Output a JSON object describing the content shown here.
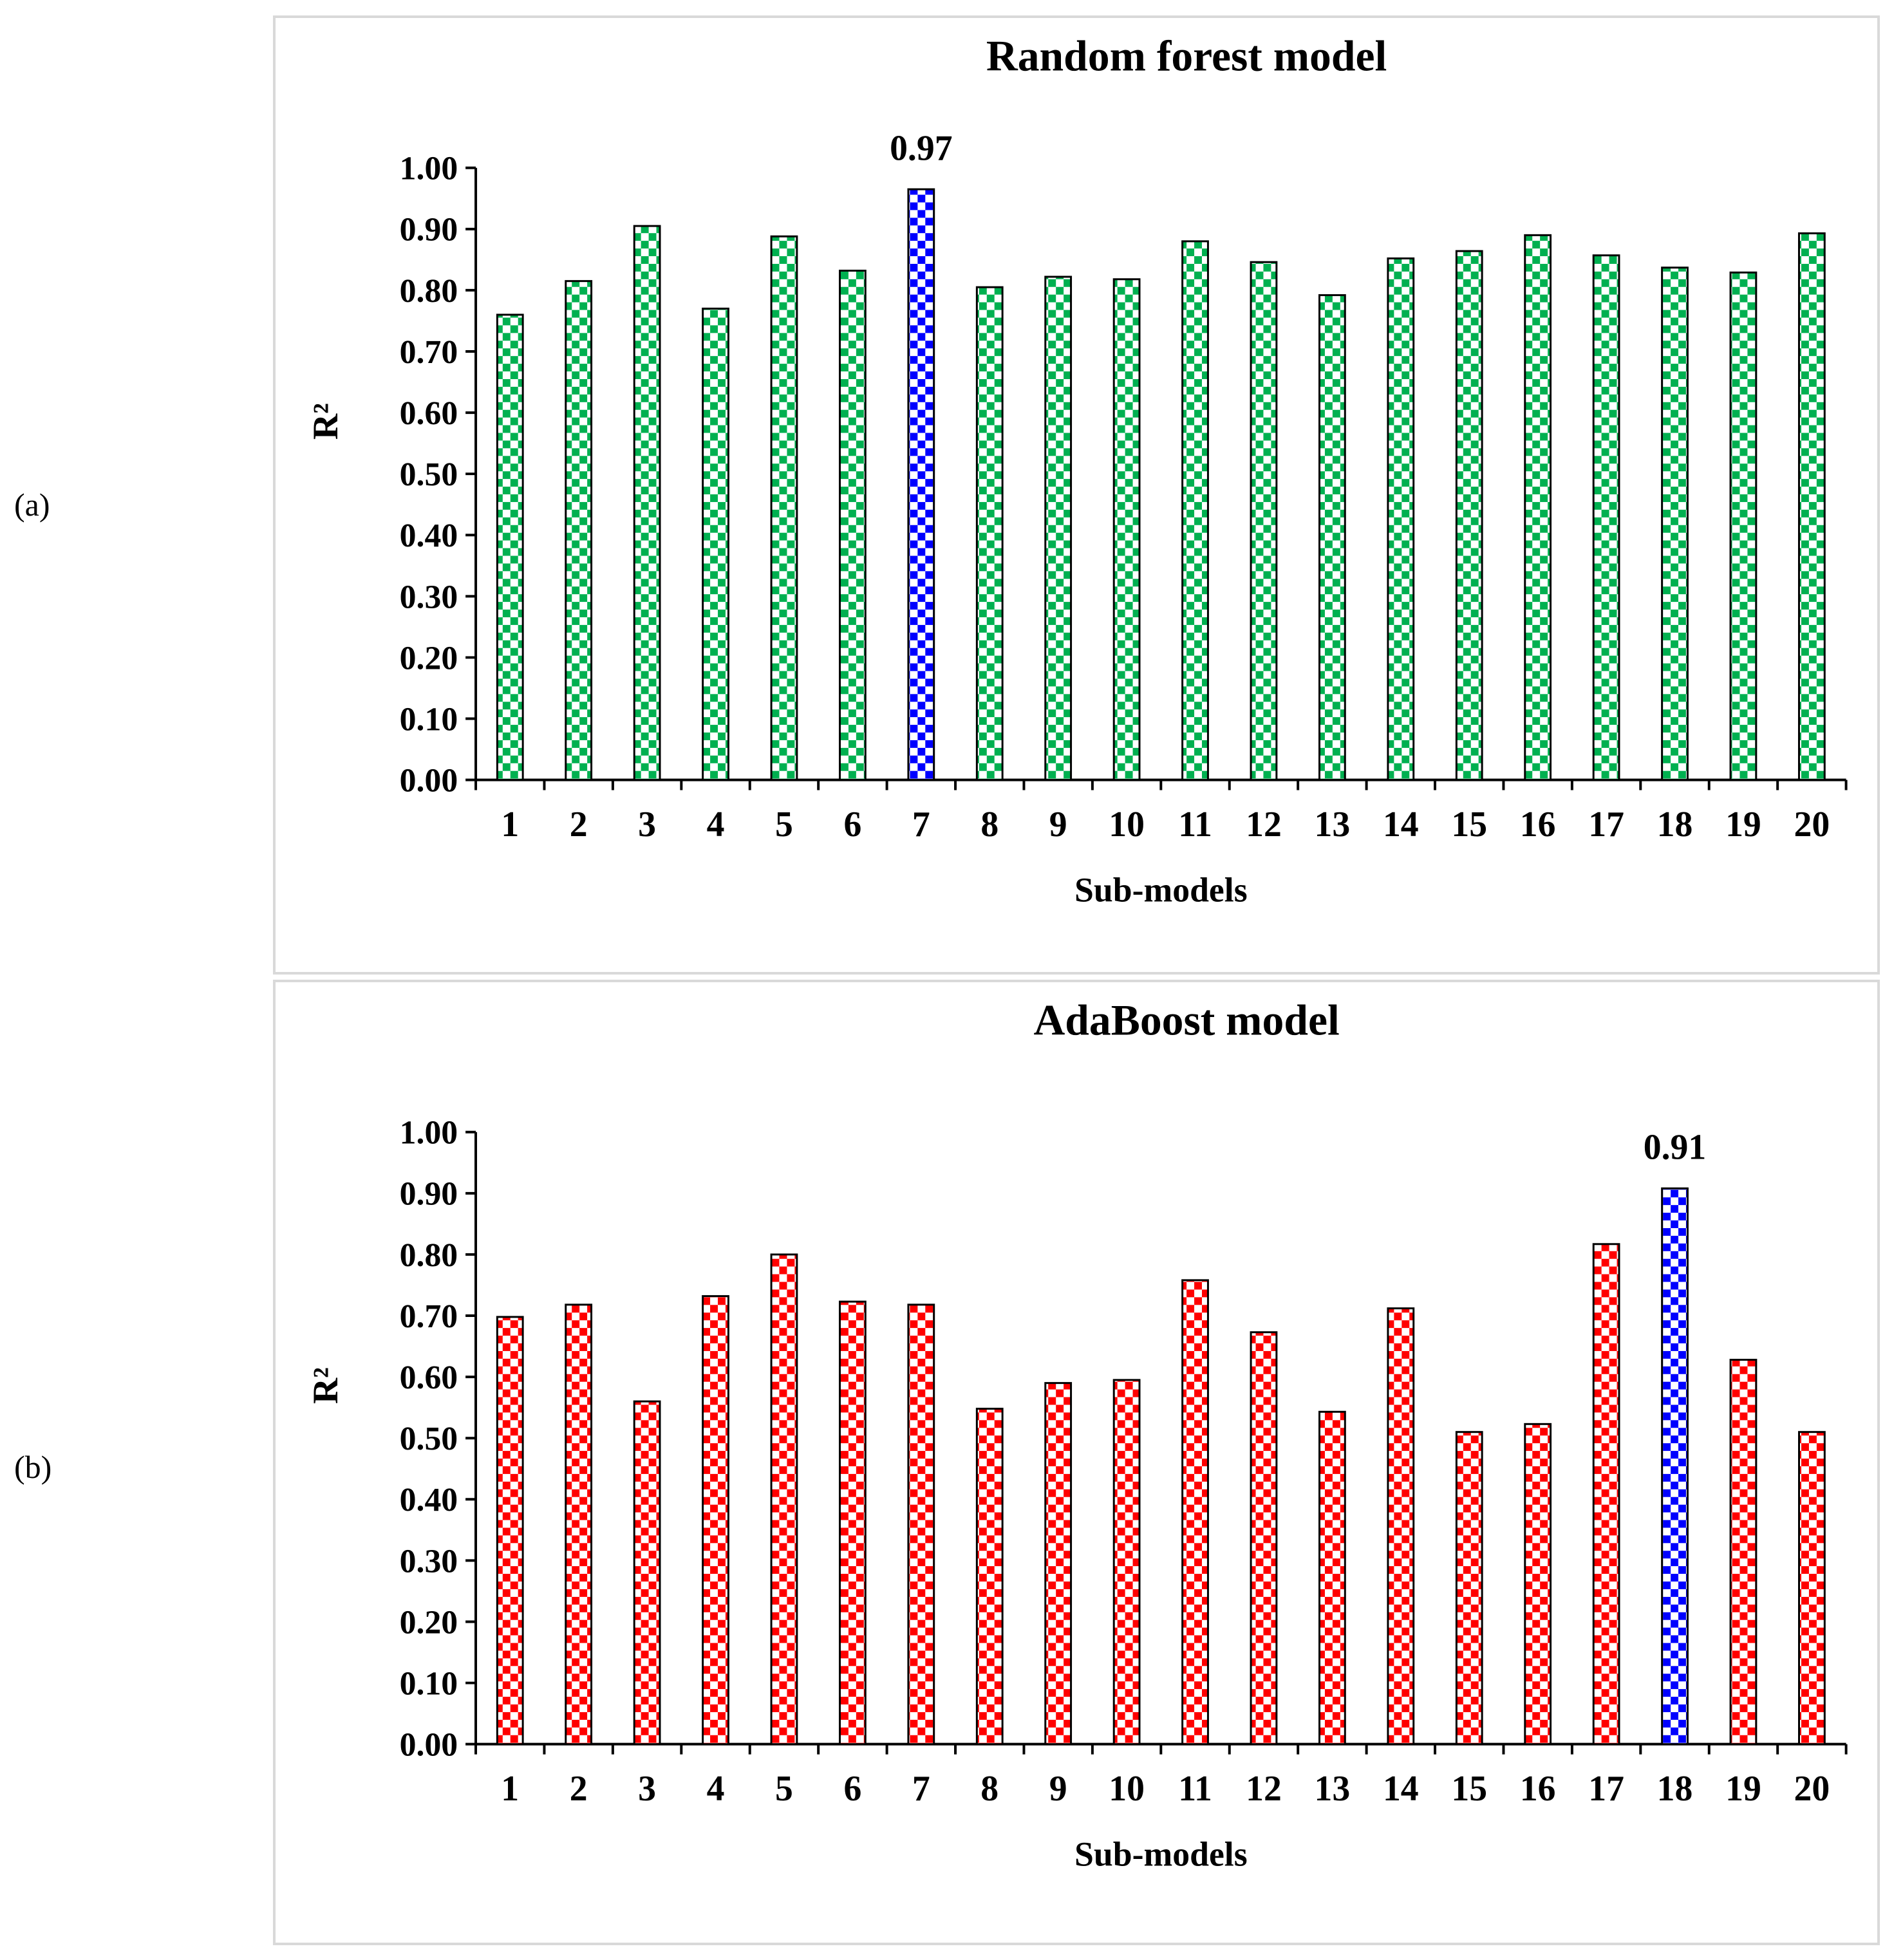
{
  "panel_labels": [
    "(a)",
    "(b)"
  ],
  "chart_data": [
    {
      "type": "bar",
      "title": "Random forest model",
      "xlabel": "Sub-models",
      "ylabel": "R²",
      "ylim": [
        0,
        1
      ],
      "yticks": [
        "0.00",
        "0.10",
        "0.20",
        "0.30",
        "0.40",
        "0.50",
        "0.60",
        "0.70",
        "0.80",
        "0.90",
        "1.00"
      ],
      "categories": [
        "1",
        "2",
        "3",
        "4",
        "5",
        "6",
        "7",
        "8",
        "9",
        "10",
        "11",
        "12",
        "13",
        "14",
        "15",
        "16",
        "17",
        "18",
        "19",
        "20"
      ],
      "values": [
        0.76,
        0.815,
        0.905,
        0.77,
        0.888,
        0.832,
        0.965,
        0.805,
        0.822,
        0.818,
        0.88,
        0.846,
        0.792,
        0.852,
        0.864,
        0.89,
        0.857,
        0.837,
        0.829,
        0.893
      ],
      "highlight_index": 6,
      "highlight_label": "0.97",
      "bar_color": "#00b050",
      "highlight_color": "#0000ff"
    },
    {
      "type": "bar",
      "title": "AdaBoost model",
      "xlabel": "Sub-models",
      "ylabel": "R²",
      "ylim": [
        0,
        1
      ],
      "yticks": [
        "0.00",
        "0.10",
        "0.20",
        "0.30",
        "0.40",
        "0.50",
        "0.60",
        "0.70",
        "0.80",
        "0.90",
        "1.00"
      ],
      "categories": [
        "1",
        "2",
        "3",
        "4",
        "5",
        "6",
        "7",
        "8",
        "9",
        "10",
        "11",
        "12",
        "13",
        "14",
        "15",
        "16",
        "17",
        "18",
        "19",
        "20"
      ],
      "values": [
        0.698,
        0.718,
        0.56,
        0.732,
        0.8,
        0.723,
        0.718,
        0.548,
        0.59,
        0.595,
        0.758,
        0.673,
        0.543,
        0.712,
        0.51,
        0.523,
        0.817,
        0.908,
        0.628,
        0.51
      ],
      "highlight_index": 17,
      "highlight_label": "0.91",
      "bar_color": "#ff0000",
      "highlight_color": "#0000ff"
    }
  ]
}
